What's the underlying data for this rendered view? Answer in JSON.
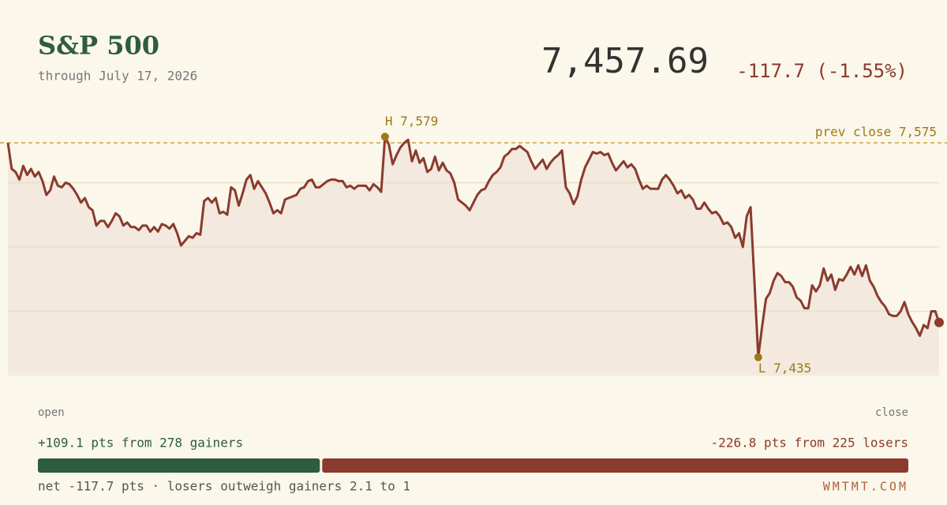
{
  "chart_data": {
    "type": "line",
    "title": "S&P 500",
    "subtitle": "through July 17, 2026",
    "price": "7,457.69",
    "change": "-117.7 (-1.55%)",
    "x_start_label": "open",
    "x_end_label": "close",
    "ylim": [
      7423,
      7591
    ],
    "ygrid": [
      7465,
      7507,
      7549
    ],
    "prev_close": {
      "value": 7575,
      "label": "prev close 7,575"
    },
    "high": {
      "value": 7579,
      "label": "H 7,579"
    },
    "low": {
      "value": 7435,
      "label": "L 7,435"
    },
    "series": [
      {
        "name": "S&P 500",
        "color": "#8b3a2e",
        "values": [
          7575,
          7558,
          7556,
          7551,
          7560,
          7554,
          7558,
          7553,
          7556,
          7550,
          7541,
          7544,
          7553,
          7547,
          7546,
          7549,
          7548,
          7545,
          7541,
          7536,
          7539,
          7533,
          7531,
          7521,
          7524,
          7524,
          7520,
          7524,
          7529,
          7527,
          7521,
          7523,
          7520,
          7520,
          7518,
          7521,
          7521,
          7517,
          7520,
          7517,
          7522,
          7521,
          7519,
          7522,
          7516,
          7508,
          7511,
          7514,
          7513,
          7516,
          7515,
          7537,
          7539,
          7536,
          7539,
          7529,
          7530,
          7528,
          7546,
          7544,
          7534,
          7542,
          7551,
          7554,
          7545,
          7550,
          7546,
          7542,
          7536,
          7529,
          7531,
          7529,
          7538,
          7539,
          7540,
          7541,
          7545,
          7546,
          7550,
          7551,
          7546,
          7546,
          7548,
          7550,
          7551,
          7551,
          7550,
          7550,
          7546,
          7547,
          7545,
          7547,
          7547,
          7547,
          7544,
          7548,
          7546,
          7543,
          7579,
          7574,
          7561,
          7567,
          7572,
          7575,
          7577,
          7563,
          7570,
          7562,
          7565,
          7556,
          7558,
          7566,
          7557,
          7562,
          7557,
          7555,
          7549,
          7538,
          7536,
          7534,
          7531,
          7536,
          7541,
          7544,
          7545,
          7550,
          7554,
          7556,
          7559,
          7566,
          7568,
          7571,
          7571,
          7573,
          7571,
          7569,
          7563,
          7558,
          7561,
          7564,
          7558,
          7562,
          7565,
          7567,
          7570,
          7546,
          7542,
          7535,
          7540,
          7551,
          7559,
          7564,
          7569,
          7568,
          7569,
          7567,
          7568,
          7562,
          7557,
          7560,
          7563,
          7559,
          7561,
          7558,
          7551,
          7545,
          7547,
          7545,
          7545,
          7545,
          7551,
          7554,
          7551,
          7547,
          7542,
          7544,
          7539,
          7541,
          7538,
          7532,
          7532,
          7536,
          7532,
          7529,
          7530,
          7527,
          7522,
          7523,
          7520,
          7513,
          7516,
          7507,
          7527,
          7533,
          7485,
          7435,
          7455,
          7473,
          7477,
          7485,
          7490,
          7488,
          7484,
          7484,
          7481,
          7474,
          7472,
          7467,
          7467,
          7482,
          7478,
          7482,
          7493,
          7485,
          7489,
          7479,
          7486,
          7485,
          7489,
          7494,
          7489,
          7495,
          7488,
          7495,
          7485,
          7481,
          7475,
          7471,
          7468,
          7463,
          7462,
          7462,
          7465,
          7471,
          7463,
          7458,
          7454,
          7449,
          7456,
          7454,
          7465,
          7465,
          7457.69
        ]
      }
    ],
    "fill_color": "#f3e9de",
    "reference_color": "#c9a640",
    "annotation_color": "#9a7a1a",
    "breadth": {
      "gainers_pts": 109.1,
      "gainers_label": "+109.1 pts from 278 gainers",
      "gainers_color": "#2e5c3e",
      "losers_pts": 226.8,
      "losers_label": "-226.8 pts from 225 losers",
      "losers_color": "#8b3a2e",
      "net_label": "net -117.7 pts · losers outweigh gainers 2.1 to 1",
      "brand": "WMTMT.COM"
    }
  }
}
